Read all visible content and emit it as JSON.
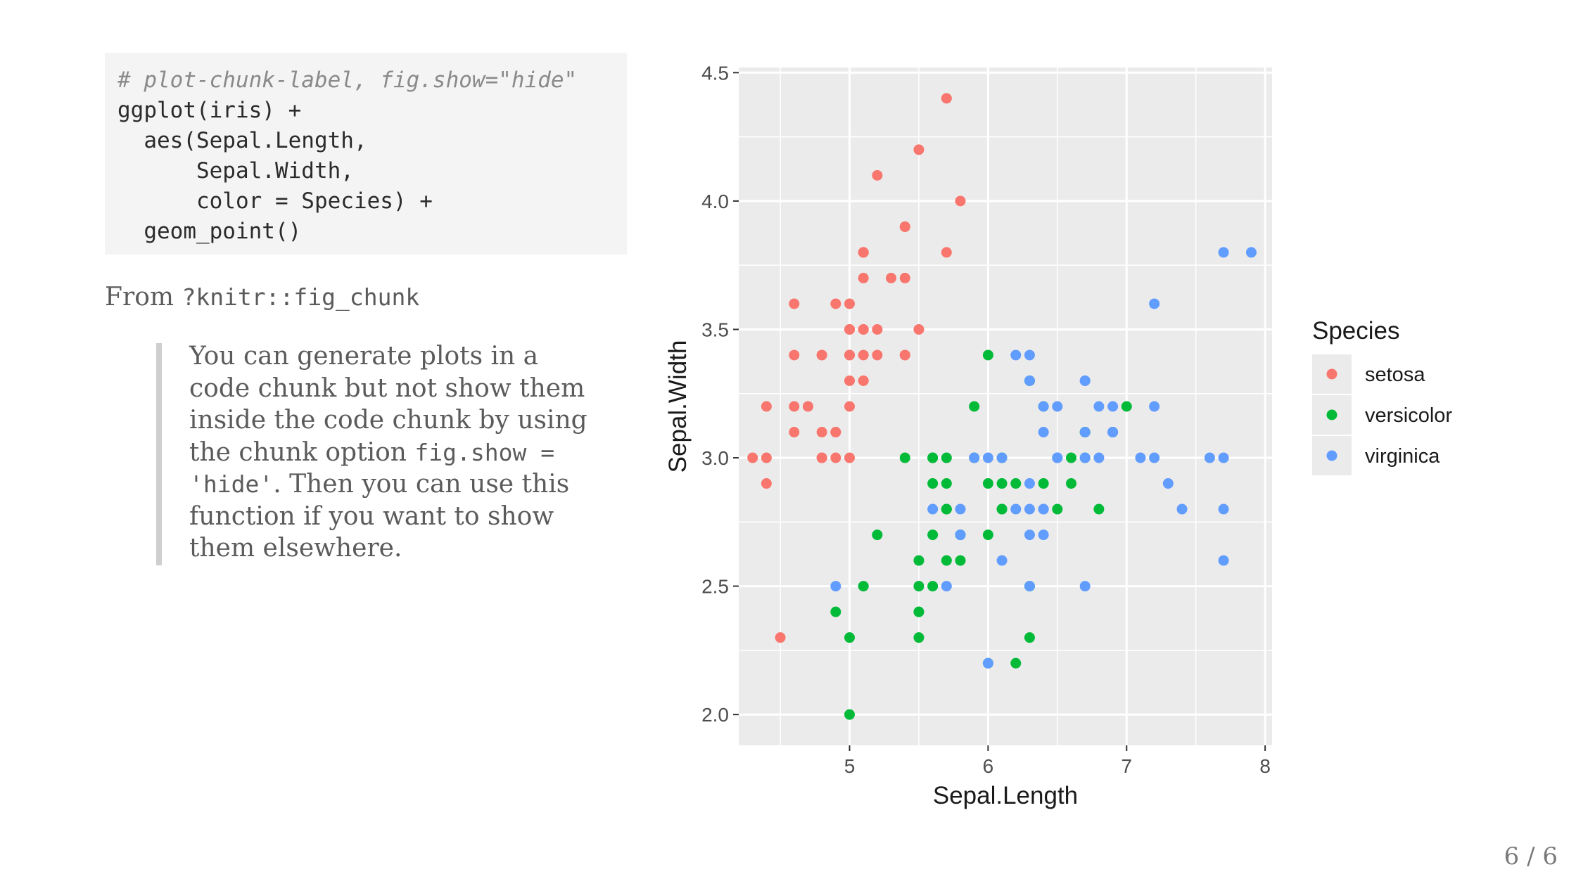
{
  "code": {
    "comment": "# plot-chunk-label, fig.show=\"hide\"",
    "lines": [
      "ggplot(iris) +",
      "  aes(Sepal.Length,",
      "      Sepal.Width,",
      "      color = Species) +",
      "  geom_point()"
    ]
  },
  "from": {
    "prefix": "From ",
    "link": "?knitr::fig_chunk"
  },
  "quote": {
    "lines": [
      {
        "parts": [
          {
            "t": "You can generate plots in a",
            "mono": false
          }
        ]
      },
      {
        "parts": [
          {
            "t": "code chunk but not show them",
            "mono": false
          }
        ]
      },
      {
        "parts": [
          {
            "t": "inside the code chunk by using",
            "mono": false
          }
        ]
      },
      {
        "parts": [
          {
            "t": "the chunk option ",
            "mono": false
          },
          {
            "t": "fig.show =",
            "mono": true
          }
        ]
      },
      {
        "parts": [
          {
            "t": "'hide'",
            "mono": true
          },
          {
            "t": ". Then you can use this",
            "mono": false
          }
        ]
      },
      {
        "parts": [
          {
            "t": "function if you want to show",
            "mono": false
          }
        ]
      },
      {
        "parts": [
          {
            "t": "them elsewhere.",
            "mono": false
          }
        ]
      }
    ]
  },
  "slide_number": "6 / 6",
  "chart_data": {
    "type": "scatter",
    "xlabel": "Sepal.Length",
    "ylabel": "Sepal.Width",
    "xlim": [
      4.2,
      8.05
    ],
    "ylim": [
      1.88,
      4.52
    ],
    "xticks": [
      5,
      6,
      7,
      8
    ],
    "ytick_labels": [
      "2.0",
      "2.5",
      "3.0",
      "3.5",
      "4.0",
      "4.5"
    ],
    "yticks": [
      2.0,
      2.5,
      3.0,
      3.5,
      4.0,
      4.5
    ],
    "grid": true,
    "panel_background": "#ebebeb",
    "legend": {
      "title": "Species",
      "position": "right",
      "entries": [
        "setosa",
        "versicolor",
        "virginica"
      ]
    },
    "series": [
      {
        "name": "setosa",
        "color": "#f8766d",
        "points": [
          [
            5.1,
            3.5
          ],
          [
            4.9,
            3.0
          ],
          [
            4.7,
            3.2
          ],
          [
            4.6,
            3.1
          ],
          [
            5.0,
            3.6
          ],
          [
            5.4,
            3.9
          ],
          [
            4.6,
            3.4
          ],
          [
            5.0,
            3.4
          ],
          [
            4.4,
            2.9
          ],
          [
            4.9,
            3.1
          ],
          [
            5.4,
            3.7
          ],
          [
            4.8,
            3.4
          ],
          [
            4.8,
            3.0
          ],
          [
            4.3,
            3.0
          ],
          [
            5.8,
            4.0
          ],
          [
            5.7,
            4.4
          ],
          [
            5.4,
            3.9
          ],
          [
            5.1,
            3.5
          ],
          [
            5.7,
            3.8
          ],
          [
            5.1,
            3.8
          ],
          [
            5.4,
            3.4
          ],
          [
            5.1,
            3.7
          ],
          [
            4.6,
            3.6
          ],
          [
            5.1,
            3.3
          ],
          [
            4.8,
            3.4
          ],
          [
            5.0,
            3.0
          ],
          [
            5.0,
            3.4
          ],
          [
            5.2,
            3.5
          ],
          [
            5.2,
            3.4
          ],
          [
            4.7,
            3.2
          ],
          [
            4.8,
            3.1
          ],
          [
            5.4,
            3.4
          ],
          [
            5.2,
            4.1
          ],
          [
            5.5,
            4.2
          ],
          [
            4.9,
            3.1
          ],
          [
            5.0,
            3.2
          ],
          [
            5.5,
            3.5
          ],
          [
            4.9,
            3.6
          ],
          [
            4.4,
            3.0
          ],
          [
            5.1,
            3.4
          ],
          [
            5.0,
            3.5
          ],
          [
            4.5,
            2.3
          ],
          [
            4.4,
            3.2
          ],
          [
            5.0,
            3.5
          ],
          [
            5.1,
            3.8
          ],
          [
            4.8,
            3.0
          ],
          [
            5.1,
            3.8
          ],
          [
            4.6,
            3.2
          ],
          [
            5.3,
            3.7
          ],
          [
            5.0,
            3.3
          ]
        ]
      },
      {
        "name": "versicolor",
        "color": "#00ba38",
        "points": [
          [
            7.0,
            3.2
          ],
          [
            6.4,
            3.2
          ],
          [
            6.9,
            3.1
          ],
          [
            5.5,
            2.3
          ],
          [
            6.5,
            2.8
          ],
          [
            5.7,
            2.8
          ],
          [
            6.3,
            3.3
          ],
          [
            4.9,
            2.4
          ],
          [
            6.6,
            2.9
          ],
          [
            5.2,
            2.7
          ],
          [
            5.0,
            2.0
          ],
          [
            5.9,
            3.0
          ],
          [
            6.0,
            2.2
          ],
          [
            6.1,
            2.9
          ],
          [
            5.6,
            2.9
          ],
          [
            6.7,
            3.1
          ],
          [
            5.6,
            3.0
          ],
          [
            5.8,
            2.7
          ],
          [
            6.2,
            2.2
          ],
          [
            5.6,
            2.5
          ],
          [
            5.9,
            3.2
          ],
          [
            6.1,
            2.8
          ],
          [
            6.3,
            2.5
          ],
          [
            6.1,
            2.8
          ],
          [
            6.4,
            2.9
          ],
          [
            6.6,
            3.0
          ],
          [
            6.8,
            2.8
          ],
          [
            6.7,
            3.0
          ],
          [
            6.0,
            2.9
          ],
          [
            5.7,
            2.6
          ],
          [
            5.5,
            2.4
          ],
          [
            5.5,
            2.4
          ],
          [
            5.8,
            2.7
          ],
          [
            6.0,
            2.7
          ],
          [
            5.4,
            3.0
          ],
          [
            6.0,
            3.4
          ],
          [
            6.7,
            3.1
          ],
          [
            6.3,
            2.3
          ],
          [
            5.6,
            3.0
          ],
          [
            5.5,
            2.5
          ],
          [
            5.5,
            2.6
          ],
          [
            6.1,
            3.0
          ],
          [
            5.8,
            2.6
          ],
          [
            5.0,
            2.3
          ],
          [
            5.6,
            2.7
          ],
          [
            5.7,
            3.0
          ],
          [
            5.7,
            2.9
          ],
          [
            6.2,
            2.9
          ],
          [
            5.1,
            2.5
          ],
          [
            5.7,
            2.8
          ]
        ]
      },
      {
        "name": "virginica",
        "color": "#619cff",
        "points": [
          [
            6.3,
            3.3
          ],
          [
            5.8,
            2.7
          ],
          [
            7.1,
            3.0
          ],
          [
            6.3,
            2.9
          ],
          [
            6.5,
            3.0
          ],
          [
            7.6,
            3.0
          ],
          [
            4.9,
            2.5
          ],
          [
            7.3,
            2.9
          ],
          [
            6.7,
            2.5
          ],
          [
            7.2,
            3.6
          ],
          [
            6.5,
            3.2
          ],
          [
            6.4,
            2.7
          ],
          [
            6.8,
            3.0
          ],
          [
            5.7,
            2.5
          ],
          [
            5.8,
            2.8
          ],
          [
            6.4,
            3.2
          ],
          [
            6.5,
            3.0
          ],
          [
            7.7,
            3.8
          ],
          [
            7.7,
            2.6
          ],
          [
            6.0,
            2.2
          ],
          [
            6.9,
            3.2
          ],
          [
            5.6,
            2.8
          ],
          [
            7.7,
            2.8
          ],
          [
            6.3,
            2.7
          ],
          [
            6.7,
            3.3
          ],
          [
            7.2,
            3.2
          ],
          [
            6.2,
            2.8
          ],
          [
            6.1,
            3.0
          ],
          [
            6.4,
            2.8
          ],
          [
            7.2,
            3.0
          ],
          [
            7.4,
            2.8
          ],
          [
            7.9,
            3.8
          ],
          [
            6.4,
            2.8
          ],
          [
            6.3,
            2.8
          ],
          [
            6.1,
            2.6
          ],
          [
            7.7,
            3.0
          ],
          [
            6.3,
            3.4
          ],
          [
            6.4,
            3.1
          ],
          [
            6.0,
            3.0
          ],
          [
            6.9,
            3.1
          ],
          [
            6.7,
            3.1
          ],
          [
            6.9,
            3.1
          ],
          [
            5.8,
            2.7
          ],
          [
            6.8,
            3.2
          ],
          [
            6.7,
            3.3
          ],
          [
            6.7,
            3.0
          ],
          [
            6.3,
            2.5
          ],
          [
            6.5,
            3.0
          ],
          [
            6.2,
            3.4
          ],
          [
            5.9,
            3.0
          ]
        ]
      }
    ]
  }
}
